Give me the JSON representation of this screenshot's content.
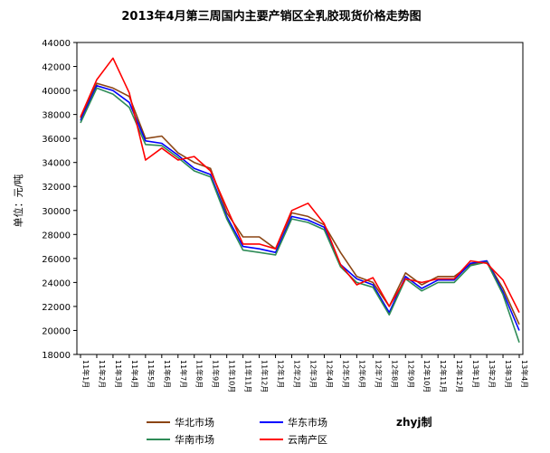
{
  "chart_data": {
    "type": "line",
    "title": "2013年4月第三周国内主要产销区全乳胶现货价格走势图",
    "ylabel": "单位：元/吨",
    "ylim": [
      18000,
      44000
    ],
    "yticks": [
      18000,
      20000,
      22000,
      24000,
      26000,
      28000,
      30000,
      32000,
      34000,
      36000,
      38000,
      40000,
      42000,
      44000
    ],
    "ytick_labels": [
      "18000",
      "20000",
      "22000",
      "24000",
      "26000",
      "28000",
      "30000",
      "32000",
      "34000",
      "36000",
      "38000",
      "40000",
      "42000",
      "44000"
    ],
    "x": [
      "11年1月",
      "11年2月",
      "11年3月",
      "11年4月",
      "11年5月",
      "11年6月",
      "11年7月",
      "11年8月",
      "11年9月",
      "11年10月",
      "11年11月",
      "11年12月",
      "12年1月",
      "12年2月",
      "12年3月",
      "12年4月",
      "12年5月",
      "12年6月",
      "12年7月",
      "12年8月",
      "12年9月",
      "12年10月",
      "12年11月",
      "12年12月",
      "13年1月",
      "13年2月",
      "13年3月",
      "13年4月"
    ],
    "x_tick_labels": [
      "11年1月",
      "11年2月",
      "11年3月",
      "11年4月",
      "11年5月",
      "11年6月",
      "11年7月",
      "11年8月",
      "11年9月",
      "11年10月",
      "11年11月",
      "11年12月",
      "12年1月",
      "12年2月",
      "12年3月",
      "12年4月",
      "12年5月",
      "12年6月",
      "12年7月",
      "12年8月",
      "12年9月",
      "12年10月",
      "12年11月",
      "12年12月",
      "13年1月",
      "13年2月",
      "13年3月",
      "13年4月"
    ],
    "series": [
      {
        "name": "华北市场",
        "color": "#8B4513",
        "values": [
          37700,
          40600,
          40200,
          39500,
          36000,
          36200,
          34800,
          34000,
          33500,
          29800,
          27800,
          27800,
          26800,
          29800,
          29500,
          28800,
          26500,
          24500,
          24000,
          22000,
          24800,
          23800,
          24500,
          24500,
          25500,
          25800,
          23500,
          20500
        ]
      },
      {
        "name": "华东市场",
        "color": "#0000FF",
        "values": [
          37500,
          40400,
          40000,
          39000,
          35800,
          35600,
          34600,
          33500,
          33000,
          29500,
          27000,
          26800,
          26500,
          29500,
          29200,
          28600,
          25500,
          24300,
          23800,
          21500,
          24500,
          23500,
          24200,
          24200,
          25600,
          25800,
          23200,
          20000
        ]
      },
      {
        "name": "华南市场",
        "color": "#2E8B57",
        "values": [
          37300,
          40200,
          39700,
          38600,
          35500,
          35400,
          34400,
          33300,
          32800,
          29300,
          26700,
          26500,
          26300,
          29300,
          29000,
          28400,
          25300,
          24000,
          23600,
          21300,
          24300,
          23300,
          24000,
          24000,
          25400,
          25700,
          23000,
          19000
        ]
      },
      {
        "name": "云南产区",
        "color": "#FF0000",
        "values": [
          37800,
          40900,
          42700,
          39800,
          34200,
          35200,
          34200,
          34500,
          33300,
          30200,
          27200,
          27200,
          26800,
          30000,
          30600,
          28900,
          25500,
          23800,
          24400,
          22000,
          24300,
          24000,
          24300,
          24300,
          25800,
          25600,
          24200,
          21500
        ]
      }
    ],
    "legend": {
      "placement": "bottom"
    },
    "grid": false,
    "watermark": "zhyj制"
  }
}
